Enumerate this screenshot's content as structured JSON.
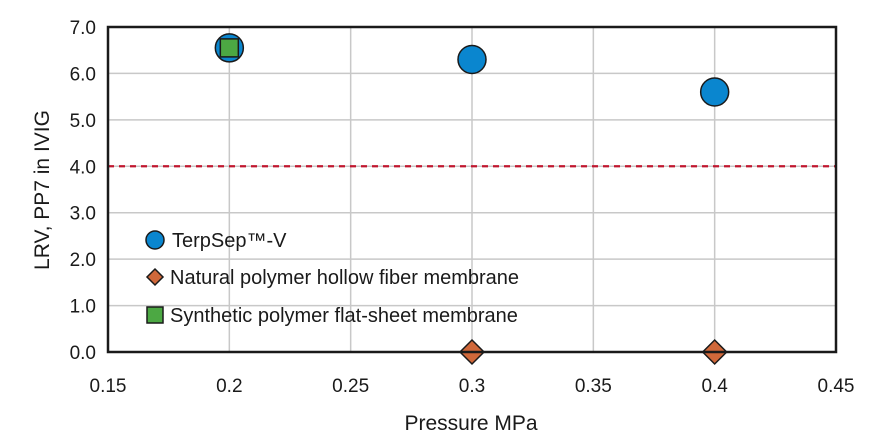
{
  "chart_data": {
    "type": "scatter",
    "xlabel": "Pressure MPa",
    "ylabel": "LRV, PP7 in IVIG",
    "xlim": [
      0.15,
      0.45
    ],
    "ylim": [
      0,
      7
    ],
    "x_ticks": [
      "0.15",
      "0.2",
      "0.25",
      "0.3",
      "0.35",
      "0.4",
      "0.45"
    ],
    "y_ticks": [
      "0.0",
      "1.0",
      "2.0",
      "3.0",
      "4.0",
      "5.0",
      "6.0",
      "7.0"
    ],
    "grid": true,
    "threshold_line": {
      "y": 4.0,
      "style": "dashed",
      "color": "#c0172f"
    },
    "legend_position": "bottom-left",
    "series": [
      {
        "name": "TerpSep™-V",
        "marker": "circle",
        "color": "#0a86cf",
        "points": [
          {
            "x": 0.2,
            "y": 6.55
          },
          {
            "x": 0.3,
            "y": 6.3
          },
          {
            "x": 0.4,
            "y": 5.6
          }
        ]
      },
      {
        "name": "Natural polymer hollow fiber membrane",
        "marker": "diamond",
        "color": "#d0683a",
        "points": [
          {
            "x": 0.3,
            "y": 0.0
          },
          {
            "x": 0.4,
            "y": 0.0
          }
        ]
      },
      {
        "name": "Synthetic polymer flat-sheet membrane",
        "marker": "square",
        "color": "#4ca843",
        "points": [
          {
            "x": 0.2,
            "y": 6.55
          }
        ]
      }
    ]
  }
}
